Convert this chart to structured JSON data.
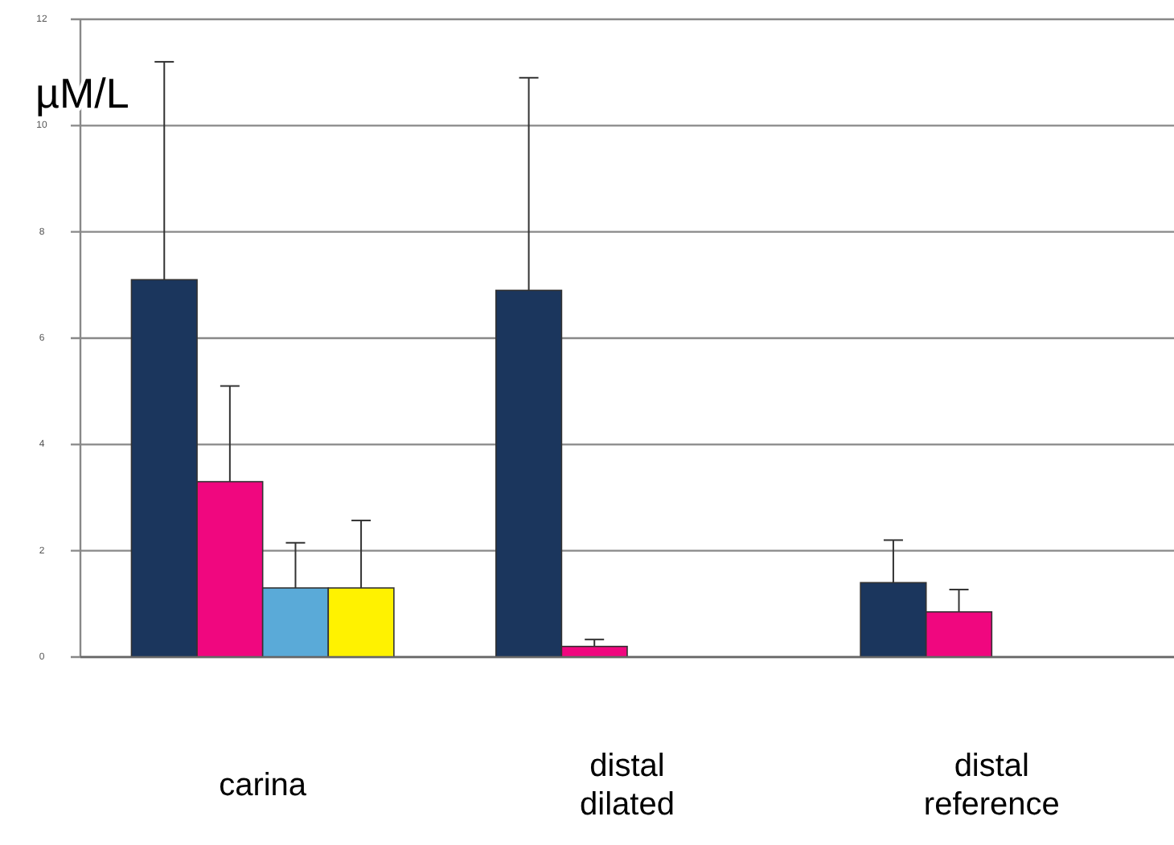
{
  "chart_data": {
    "type": "bar",
    "ylabel": "µM/L",
    "categories": [
      "carina",
      "distal dilated",
      "distal reference"
    ],
    "series": [
      {
        "color": "#1b365d",
        "values": [
          7.1,
          6.9,
          1.4
        ],
        "errors": [
          [
            7.1,
            11.2
          ],
          [
            6.9,
            10.9
          ],
          [
            1.4,
            2.2
          ]
        ]
      },
      {
        "color": "#f0077f",
        "values": [
          3.3,
          0.2,
          0.85
        ],
        "errors": [
          [
            3.3,
            5.1
          ],
          [
            0.2,
            0.33
          ],
          [
            0.85,
            1.27
          ]
        ]
      },
      {
        "color": "#5aaad8",
        "values": [
          1.3,
          null,
          null
        ],
        "errors": [
          [
            1.3,
            2.15
          ],
          null,
          null
        ]
      },
      {
        "color": "#fff200",
        "values": [
          1.3,
          null,
          null
        ],
        "errors": [
          [
            1.3,
            2.57
          ],
          null,
          null
        ]
      }
    ],
    "ylim": [
      0,
      12
    ],
    "yticks": [
      0,
      2,
      4,
      6,
      8,
      10,
      12
    ],
    "grid": "y"
  }
}
